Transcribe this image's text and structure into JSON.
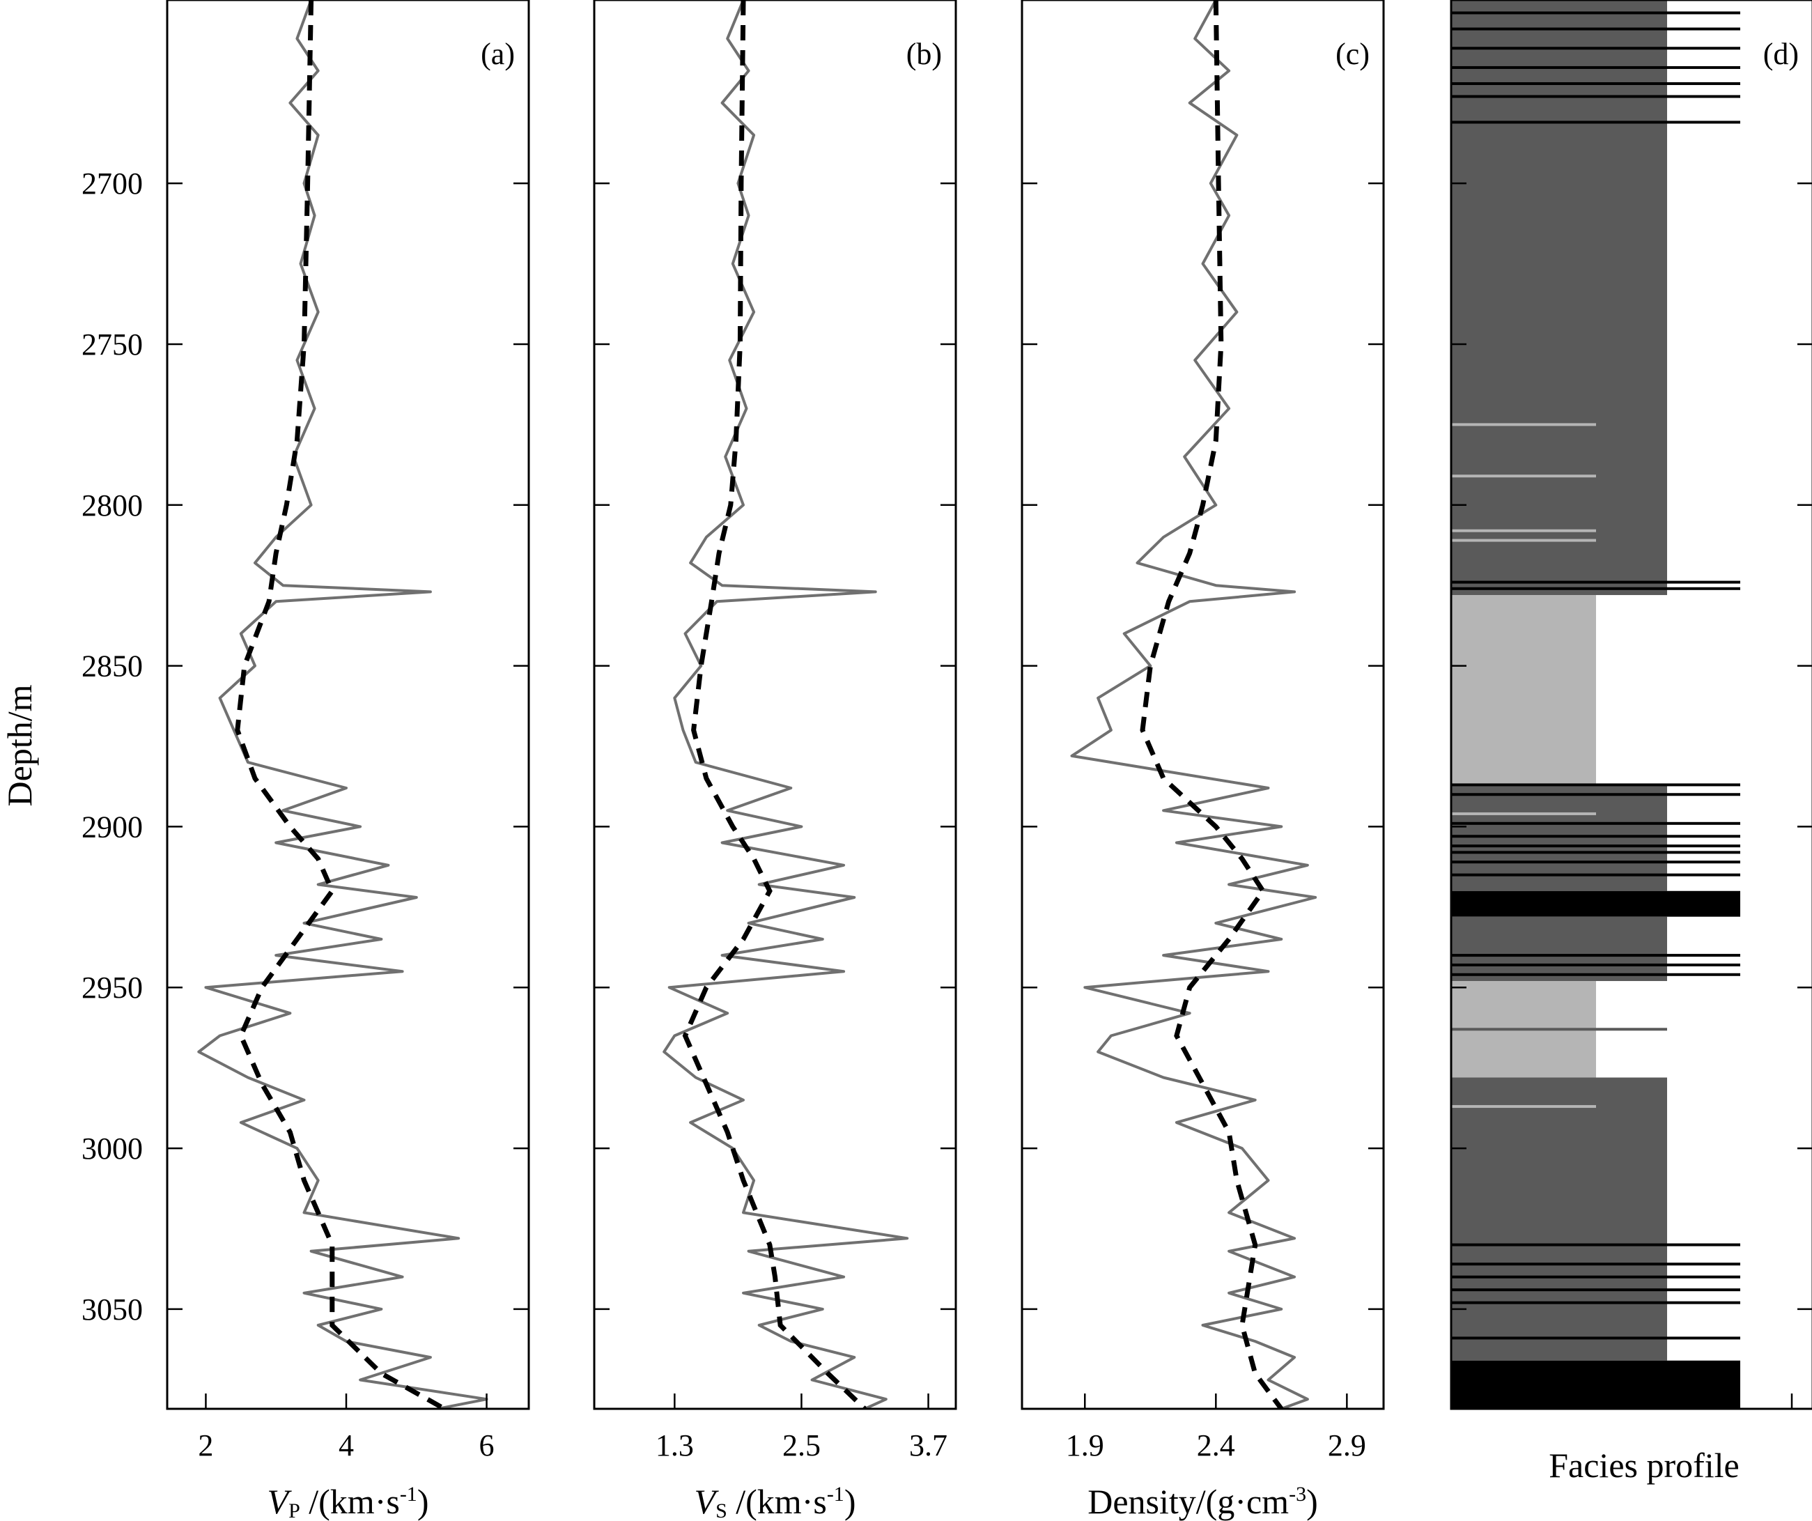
{
  "chart_data": {
    "type": "line",
    "ylabel": "Depth/m",
    "ylim": [
      2643,
      3081
    ],
    "yticks": [
      2700,
      2750,
      2800,
      2850,
      2900,
      2950,
      3000,
      3050
    ],
    "panels": [
      {
        "id": "a",
        "letter": "(a)",
        "xlabel_main": "V",
        "xlabel_sub": "P",
        "xlabel_unit": " /(km·s",
        "xlabel_exp": "-1",
        "xlabel_close": ")",
        "xlim": [
          1.45,
          6.6
        ],
        "xticks": [
          2,
          4,
          6
        ],
        "xtick_labels": [
          "2",
          "4",
          "6"
        ],
        "colors": {
          "log": "#707070",
          "trend": "#000000"
        },
        "trend": [
          [
            2643,
            3.5
          ],
          [
            2700,
            3.45
          ],
          [
            2750,
            3.4
          ],
          [
            2780,
            3.3
          ],
          [
            2800,
            3.15
          ],
          [
            2815,
            3.0
          ],
          [
            2830,
            2.9
          ],
          [
            2850,
            2.55
          ],
          [
            2870,
            2.45
          ],
          [
            2885,
            2.7
          ],
          [
            2900,
            3.2
          ],
          [
            2910,
            3.6
          ],
          [
            2920,
            3.8
          ],
          [
            2935,
            3.3
          ],
          [
            2950,
            2.8
          ],
          [
            2965,
            2.5
          ],
          [
            2980,
            2.8
          ],
          [
            2995,
            3.2
          ],
          [
            3010,
            3.4
          ],
          [
            3030,
            3.8
          ],
          [
            3040,
            3.8
          ],
          [
            3055,
            3.8
          ],
          [
            3070,
            4.5
          ],
          [
            3081,
            5.4
          ]
        ],
        "log": [
          [
            2643,
            3.5
          ],
          [
            2655,
            3.3
          ],
          [
            2665,
            3.6
          ],
          [
            2675,
            3.2
          ],
          [
            2685,
            3.6
          ],
          [
            2700,
            3.4
          ],
          [
            2710,
            3.55
          ],
          [
            2725,
            3.35
          ],
          [
            2740,
            3.6
          ],
          [
            2755,
            3.3
          ],
          [
            2770,
            3.55
          ],
          [
            2785,
            3.25
          ],
          [
            2800,
            3.5
          ],
          [
            2810,
            3.0
          ],
          [
            2818,
            2.7
          ],
          [
            2825,
            3.1
          ],
          [
            2827,
            5.2
          ],
          [
            2830,
            3.0
          ],
          [
            2840,
            2.5
          ],
          [
            2850,
            2.7
          ],
          [
            2860,
            2.2
          ],
          [
            2870,
            2.4
          ],
          [
            2880,
            2.6
          ],
          [
            2888,
            4.0
          ],
          [
            2895,
            3.1
          ],
          [
            2900,
            4.2
          ],
          [
            2905,
            3.0
          ],
          [
            2912,
            4.6
          ],
          [
            2918,
            3.6
          ],
          [
            2922,
            5.0
          ],
          [
            2930,
            3.4
          ],
          [
            2935,
            4.5
          ],
          [
            2940,
            3.0
          ],
          [
            2945,
            4.8
          ],
          [
            2950,
            2.0
          ],
          [
            2958,
            3.2
          ],
          [
            2965,
            2.2
          ],
          [
            2970,
            1.9
          ],
          [
            2978,
            2.6
          ],
          [
            2985,
            3.4
          ],
          [
            2992,
            2.5
          ],
          [
            3000,
            3.3
          ],
          [
            3010,
            3.6
          ],
          [
            3020,
            3.4
          ],
          [
            3028,
            5.6
          ],
          [
            3032,
            3.5
          ],
          [
            3040,
            4.8
          ],
          [
            3045,
            3.4
          ],
          [
            3050,
            4.5
          ],
          [
            3055,
            3.6
          ],
          [
            3060,
            4.0
          ],
          [
            3065,
            5.2
          ],
          [
            3072,
            4.2
          ],
          [
            3078,
            6.0
          ],
          [
            3081,
            5.3
          ]
        ]
      },
      {
        "id": "b",
        "letter": "(b)",
        "xlabel_main": "V",
        "xlabel_sub": "S",
        "xlabel_unit": " /(km·s",
        "xlabel_exp": "-1",
        "xlabel_close": ")",
        "xlim": [
          0.54,
          3.96
        ],
        "xticks": [
          1.3,
          2.5,
          3.7
        ],
        "xtick_labels": [
          "1.3",
          "2.5",
          "3.7"
        ],
        "colors": {
          "log": "#707070",
          "trend": "#000000"
        },
        "trend": [
          [
            2643,
            1.95
          ],
          [
            2700,
            1.93
          ],
          [
            2750,
            1.92
          ],
          [
            2780,
            1.88
          ],
          [
            2800,
            1.83
          ],
          [
            2815,
            1.72
          ],
          [
            2830,
            1.65
          ],
          [
            2850,
            1.55
          ],
          [
            2870,
            1.48
          ],
          [
            2885,
            1.6
          ],
          [
            2900,
            1.85
          ],
          [
            2910,
            2.05
          ],
          [
            2920,
            2.2
          ],
          [
            2935,
            1.95
          ],
          [
            2950,
            1.6
          ],
          [
            2965,
            1.4
          ],
          [
            2980,
            1.6
          ],
          [
            2995,
            1.8
          ],
          [
            3010,
            1.95
          ],
          [
            3030,
            2.2
          ],
          [
            3040,
            2.25
          ],
          [
            3055,
            2.3
          ],
          [
            3070,
            2.75
          ],
          [
            3081,
            3.1
          ]
        ],
        "log": [
          [
            2643,
            1.95
          ],
          [
            2655,
            1.8
          ],
          [
            2665,
            2.0
          ],
          [
            2675,
            1.75
          ],
          [
            2685,
            2.05
          ],
          [
            2700,
            1.9
          ],
          [
            2710,
            2.0
          ],
          [
            2725,
            1.85
          ],
          [
            2740,
            2.05
          ],
          [
            2755,
            1.82
          ],
          [
            2770,
            1.98
          ],
          [
            2785,
            1.78
          ],
          [
            2800,
            1.95
          ],
          [
            2810,
            1.6
          ],
          [
            2818,
            1.45
          ],
          [
            2825,
            1.75
          ],
          [
            2827,
            3.2
          ],
          [
            2830,
            1.7
          ],
          [
            2840,
            1.4
          ],
          [
            2850,
            1.55
          ],
          [
            2860,
            1.3
          ],
          [
            2870,
            1.38
          ],
          [
            2880,
            1.5
          ],
          [
            2888,
            2.4
          ],
          [
            2895,
            1.8
          ],
          [
            2900,
            2.5
          ],
          [
            2905,
            1.75
          ],
          [
            2912,
            2.9
          ],
          [
            2918,
            2.1
          ],
          [
            2922,
            3.0
          ],
          [
            2930,
            2.0
          ],
          [
            2935,
            2.7
          ],
          [
            2940,
            1.75
          ],
          [
            2945,
            2.9
          ],
          [
            2950,
            1.25
          ],
          [
            2958,
            1.8
          ],
          [
            2965,
            1.3
          ],
          [
            2970,
            1.2
          ],
          [
            2978,
            1.5
          ],
          [
            2985,
            1.95
          ],
          [
            2992,
            1.45
          ],
          [
            3000,
            1.85
          ],
          [
            3010,
            2.05
          ],
          [
            3020,
            1.95
          ],
          [
            3028,
            3.5
          ],
          [
            3032,
            2.0
          ],
          [
            3040,
            2.9
          ],
          [
            3045,
            1.95
          ],
          [
            3050,
            2.7
          ],
          [
            3055,
            2.1
          ],
          [
            3060,
            2.4
          ],
          [
            3065,
            3.0
          ],
          [
            3072,
            2.6
          ],
          [
            3078,
            3.3
          ],
          [
            3081,
            3.1
          ]
        ]
      },
      {
        "id": "c",
        "letter": "(c)",
        "xlabel_main": "Density/(g·cm",
        "xlabel_sub": "",
        "xlabel_unit": "",
        "xlabel_exp": "-3",
        "xlabel_close": ")",
        "xlim": [
          1.66,
          3.04
        ],
        "xticks": [
          1.9,
          2.4,
          2.9
        ],
        "xtick_labels": [
          "1.9",
          "2.4",
          "2.9"
        ],
        "colors": {
          "log": "#707070",
          "trend": "#000000"
        },
        "trend": [
          [
            2643,
            2.4
          ],
          [
            2700,
            2.41
          ],
          [
            2750,
            2.42
          ],
          [
            2780,
            2.4
          ],
          [
            2800,
            2.35
          ],
          [
            2815,
            2.3
          ],
          [
            2830,
            2.22
          ],
          [
            2850,
            2.15
          ],
          [
            2870,
            2.12
          ],
          [
            2885,
            2.2
          ],
          [
            2900,
            2.4
          ],
          [
            2910,
            2.5
          ],
          [
            2920,
            2.58
          ],
          [
            2935,
            2.45
          ],
          [
            2950,
            2.3
          ],
          [
            2965,
            2.25
          ],
          [
            2980,
            2.35
          ],
          [
            2995,
            2.45
          ],
          [
            3010,
            2.48
          ],
          [
            3030,
            2.55
          ],
          [
            3040,
            2.53
          ],
          [
            3055,
            2.5
          ],
          [
            3070,
            2.55
          ],
          [
            3081,
            2.65
          ]
        ],
        "log": [
          [
            2643,
            2.4
          ],
          [
            2655,
            2.32
          ],
          [
            2665,
            2.45
          ],
          [
            2675,
            2.3
          ],
          [
            2685,
            2.48
          ],
          [
            2700,
            2.38
          ],
          [
            2710,
            2.45
          ],
          [
            2725,
            2.35
          ],
          [
            2740,
            2.48
          ],
          [
            2755,
            2.32
          ],
          [
            2770,
            2.45
          ],
          [
            2785,
            2.28
          ],
          [
            2800,
            2.4
          ],
          [
            2810,
            2.2
          ],
          [
            2818,
            2.1
          ],
          [
            2825,
            2.4
          ],
          [
            2827,
            2.7
          ],
          [
            2830,
            2.3
          ],
          [
            2840,
            2.05
          ],
          [
            2850,
            2.15
          ],
          [
            2860,
            1.95
          ],
          [
            2870,
            2.0
          ],
          [
            2878,
            1.85
          ],
          [
            2888,
            2.6
          ],
          [
            2895,
            2.2
          ],
          [
            2900,
            2.65
          ],
          [
            2905,
            2.25
          ],
          [
            2912,
            2.75
          ],
          [
            2918,
            2.45
          ],
          [
            2922,
            2.78
          ],
          [
            2930,
            2.4
          ],
          [
            2935,
            2.65
          ],
          [
            2940,
            2.2
          ],
          [
            2945,
            2.6
          ],
          [
            2950,
            1.9
          ],
          [
            2958,
            2.3
          ],
          [
            2965,
            2.0
          ],
          [
            2970,
            1.95
          ],
          [
            2978,
            2.2
          ],
          [
            2985,
            2.55
          ],
          [
            2992,
            2.25
          ],
          [
            3000,
            2.5
          ],
          [
            3010,
            2.6
          ],
          [
            3020,
            2.45
          ],
          [
            3028,
            2.7
          ],
          [
            3032,
            2.45
          ],
          [
            3040,
            2.7
          ],
          [
            3045,
            2.45
          ],
          [
            3050,
            2.65
          ],
          [
            3055,
            2.35
          ],
          [
            3060,
            2.55
          ],
          [
            3065,
            2.7
          ],
          [
            3072,
            2.6
          ],
          [
            3078,
            2.75
          ],
          [
            3081,
            2.65
          ]
        ]
      }
    ],
    "facies_panel": {
      "letter": "(d)",
      "xlabel": "Facies profile",
      "colors": {
        "class_1": "#5a5a5a",
        "class_2": "#b5b5b5",
        "class_3": "#000000",
        "background": "#ffffff"
      },
      "blocks": [
        {
          "from": 2643,
          "to": 2828,
          "class": 1
        },
        {
          "from": 2828,
          "to": 2887,
          "class": 2
        },
        {
          "from": 2887,
          "to": 2920,
          "class": 1
        },
        {
          "from": 2920,
          "to": 2928,
          "class": 3
        },
        {
          "from": 2928,
          "to": 2948,
          "class": 1
        },
        {
          "from": 2948,
          "to": 2978,
          "class": 2
        },
        {
          "from": 2978,
          "to": 3066,
          "class": 1
        },
        {
          "from": 3066,
          "to": 3081,
          "class": 3
        }
      ],
      "lines": [
        {
          "depth": 2647,
          "class": 3
        },
        {
          "depth": 2652,
          "class": 3
        },
        {
          "depth": 2658,
          "class": 3
        },
        {
          "depth": 2664,
          "class": 3
        },
        {
          "depth": 2669,
          "class": 3
        },
        {
          "depth": 2673,
          "class": 3
        },
        {
          "depth": 2681,
          "class": 3
        },
        {
          "depth": 2775,
          "class": 2
        },
        {
          "depth": 2791,
          "class": 2
        },
        {
          "depth": 2808,
          "class": 2
        },
        {
          "depth": 2811,
          "class": 2
        },
        {
          "depth": 2824,
          "class": 3
        },
        {
          "depth": 2826,
          "class": 3
        },
        {
          "depth": 2887,
          "class": 3
        },
        {
          "depth": 2890,
          "class": 3
        },
        {
          "depth": 2896,
          "class": 2
        },
        {
          "depth": 2899,
          "class": 3
        },
        {
          "depth": 2903,
          "class": 3
        },
        {
          "depth": 2906,
          "class": 3
        },
        {
          "depth": 2908,
          "class": 3
        },
        {
          "depth": 2911,
          "class": 3
        },
        {
          "depth": 2915,
          "class": 3
        },
        {
          "depth": 2932,
          "class": 1
        },
        {
          "depth": 2935,
          "class": 1
        },
        {
          "depth": 2940,
          "class": 3
        },
        {
          "depth": 2943,
          "class": 3
        },
        {
          "depth": 2946,
          "class": 3
        },
        {
          "depth": 2963,
          "class": 1
        },
        {
          "depth": 2980,
          "class": 1
        },
        {
          "depth": 2984,
          "class": 1
        },
        {
          "depth": 2987,
          "class": 2
        },
        {
          "depth": 2992,
          "class": 1
        },
        {
          "depth": 3021,
          "class": 1
        },
        {
          "depth": 3030,
          "class": 3
        },
        {
          "depth": 3036,
          "class": 3
        },
        {
          "depth": 3040,
          "class": 3
        },
        {
          "depth": 3044,
          "class": 3
        },
        {
          "depth": 3048,
          "class": 3
        },
        {
          "depth": 3059,
          "class": 3
        }
      ]
    }
  }
}
